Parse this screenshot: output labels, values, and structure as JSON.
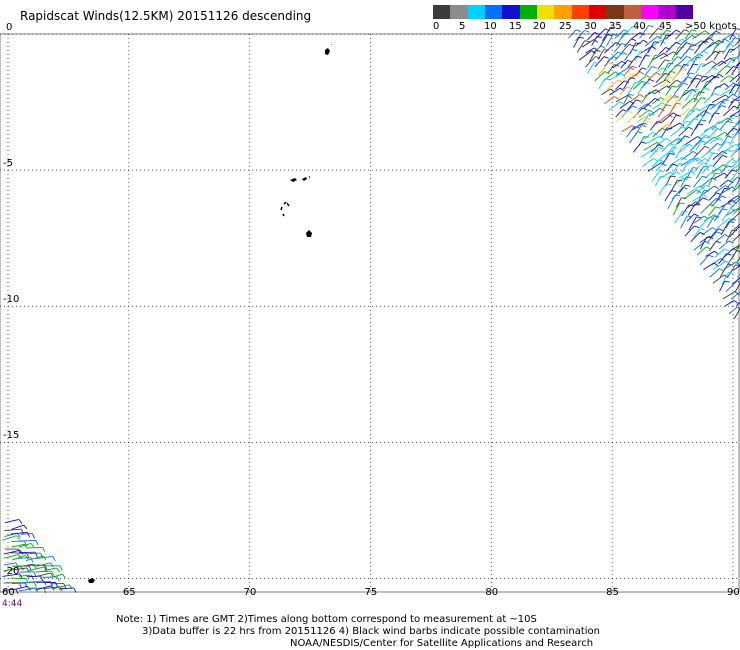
{
  "title": "Rapidscat Winds(12.5KM) 20151126 descending",
  "legend": {
    "labels": [
      "0",
      "5",
      "10",
      "15",
      "20",
      "25",
      "30",
      "35",
      "40",
      "45",
      ">50 knots"
    ],
    "colors": [
      "#3c3c3c",
      "#8c8c8c",
      "#00d0ff",
      "#0070ff",
      "#1010d0",
      "#00b000",
      "#f0e000",
      "#ffa000",
      "#ff4000",
      "#e00000",
      "#7a3a1a",
      "#c06040",
      "#ff00ff",
      "#b000d0",
      "#5000a0"
    ]
  },
  "axes": {
    "lat_labels": [
      "0",
      "-5",
      "-10",
      "-15",
      "-20"
    ],
    "lon_labels": [
      "60",
      "65",
      "70",
      "75",
      "80",
      "85",
      "90"
    ],
    "lat_range": [
      -20.5,
      0
    ],
    "lon_range": [
      60,
      90
    ]
  },
  "time_label": "4:44",
  "footer": {
    "line1": "Note: 1) Times are GMT 2)Times along bottom correspond to measurement at ~10S",
    "line2": "3)Data buffer is 22 hrs from 20151126 4) Black wind barbs indicate possible contamination",
    "line3": "NOAA/NESDIS/Center for Satellite Applications and Research"
  }
}
